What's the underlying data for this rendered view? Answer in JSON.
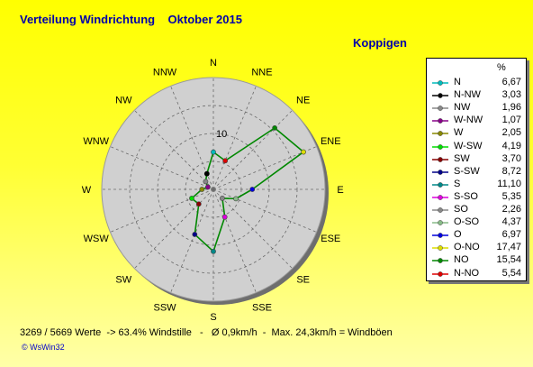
{
  "title": "Verteilung Windrichtung    Oktober 2015",
  "station": "Koppigen",
  "footer": "3269 / 5669 Werte  -> 63.4% Windstille   -   Ø 0,9km/h  -  Max. 24,3km/h = Windböen",
  "credit": "© WsWin32",
  "chart_data": {
    "type": "radar",
    "title": "Verteilung Windrichtung    Oktober 2015",
    "compass_labels": [
      "N",
      "NNE",
      "NE",
      "ENE",
      "E",
      "ESE",
      "SE",
      "SSE",
      "S",
      "SSW",
      "SW",
      "WSW",
      "W",
      "WNW",
      "NW",
      "NNW"
    ],
    "ring_label": "10",
    "ring_label_value": 10,
    "rlim": [
      0,
      20
    ],
    "ring_step": 5,
    "grid": true,
    "legend_position": "right",
    "legend_unit": "%",
    "series_color": "#008800",
    "series": [
      {
        "name": "N",
        "direction": "N",
        "value": 6.67,
        "value_text": "6,67",
        "color": "#00bbbb"
      },
      {
        "name": "N-NW",
        "direction": "NNW",
        "value": 3.03,
        "value_text": "3,03",
        "color": "#000000"
      },
      {
        "name": "NW",
        "direction": "NW",
        "value": 1.96,
        "value_text": "1,96",
        "color": "#888888"
      },
      {
        "name": "W-NW",
        "direction": "WNW",
        "value": 1.07,
        "value_text": "1,07",
        "color": "#880088"
      },
      {
        "name": "W",
        "direction": "W",
        "value": 2.05,
        "value_text": "2,05",
        "color": "#888800"
      },
      {
        "name": "W-SW",
        "direction": "WSW",
        "value": 4.19,
        "value_text": "4,19",
        "color": "#00dd00"
      },
      {
        "name": "SW",
        "direction": "SW",
        "value": 3.7,
        "value_text": "3,70",
        "color": "#880000"
      },
      {
        "name": "S-SW",
        "direction": "SSW",
        "value": 8.72,
        "value_text": "8,72",
        "color": "#000088"
      },
      {
        "name": "S",
        "direction": "S",
        "value": 11.1,
        "value_text": "11,10",
        "color": "#008888"
      },
      {
        "name": "S-SO",
        "direction": "SSE",
        "value": 5.35,
        "value_text": "5,35",
        "color": "#dd00dd"
      },
      {
        "name": "SO",
        "direction": "SE",
        "value": 2.26,
        "value_text": "2,26",
        "color": "#888888"
      },
      {
        "name": "O-SO",
        "direction": "ESE",
        "value": 4.37,
        "value_text": "4,37",
        "color": "#88bb88"
      },
      {
        "name": "O",
        "direction": "E",
        "value": 6.97,
        "value_text": "6,97",
        "color": "#0000dd"
      },
      {
        "name": "O-NO",
        "direction": "ENE",
        "value": 17.47,
        "value_text": "17,47",
        "color": "#dddd00"
      },
      {
        "name": "NO",
        "direction": "NE",
        "value": 15.54,
        "value_text": "15,54",
        "color": "#008800"
      },
      {
        "name": "N-NO",
        "direction": "NNE",
        "value": 5.54,
        "value_text": "5,54",
        "color": "#dd0000"
      }
    ]
  }
}
